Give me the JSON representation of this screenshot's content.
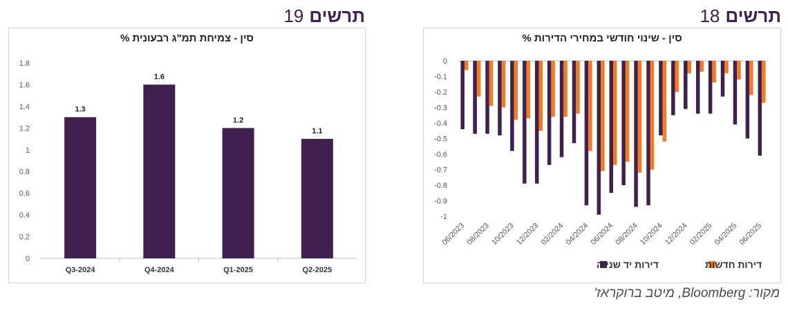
{
  "fig19": {
    "word": "תרשים",
    "number": "19",
    "chart_data": {
      "type": "bar",
      "title": "סין - צמיחת תמ\"ג רבעונית %",
      "categories": [
        "Q3-2024",
        "Q4-2024",
        "Q1-2025",
        "Q2-2025"
      ],
      "values": [
        1.3,
        1.6,
        1.2,
        1.1
      ],
      "data_labels": [
        "1.3",
        "1.6",
        "1.2",
        "1.1"
      ],
      "ylim": [
        0,
        1.8
      ],
      "yticks": [
        "0",
        "0.2",
        "0.4",
        "0.6",
        "0.8",
        "1",
        "1.2",
        "1.4",
        "1.6",
        "1.8"
      ],
      "grid": false,
      "color": "#40204f"
    }
  },
  "fig18": {
    "word": "תרשים",
    "number": "18",
    "chart_data": {
      "type": "bar",
      "title": "סין - שינוי חודשי במחירי הדירות %",
      "categories": [
        "06/2023",
        "07/2023",
        "08/2023",
        "09/2023",
        "10/2023",
        "11/2023",
        "12/2023",
        "01/2024",
        "02/2024",
        "03/2024",
        "04/2024",
        "05/2024",
        "06/2024",
        "07/2024",
        "08/2024",
        "09/2024",
        "10/2024",
        "11/2024",
        "12/2024",
        "01/2025",
        "02/2025",
        "03/2025",
        "04/2025",
        "05/2025",
        "06/2025"
      ],
      "x_tick_labels": [
        "06/2023",
        "08/2023",
        "10/2023",
        "12/2023",
        "02/2024",
        "04/2024",
        "06/2024",
        "08/2024",
        "10/2024",
        "12/2024",
        "02/2025",
        "04/2025",
        "06/2025"
      ],
      "series": [
        {
          "name": "דירות יד שנייה",
          "color": "#40204f",
          "values": [
            -0.44,
            -0.47,
            -0.47,
            -0.48,
            -0.58,
            -0.79,
            -0.79,
            -0.67,
            -0.62,
            -0.53,
            -0.93,
            -0.99,
            -0.85,
            -0.8,
            -0.94,
            -0.93,
            -0.48,
            -0.35,
            -0.31,
            -0.34,
            -0.34,
            -0.23,
            -0.41,
            -0.5,
            -0.61
          ]
        },
        {
          "name": "דירות חדשות",
          "color": "#f47b20",
          "values": [
            -0.06,
            -0.23,
            -0.29,
            -0.3,
            -0.38,
            -0.37,
            -0.45,
            -0.36,
            -0.36,
            -0.34,
            -0.58,
            -0.71,
            -0.67,
            -0.65,
            -0.72,
            -0.7,
            -0.52,
            -0.2,
            -0.08,
            -0.07,
            -0.14,
            -0.08,
            -0.12,
            -0.22,
            -0.27
          ]
        }
      ],
      "ylim": [
        -1,
        0
      ],
      "yticks": [
        "0",
        "-0.1",
        "-0.2",
        "-0.3",
        "-0.4",
        "-0.5",
        "-0.6",
        "-0.7",
        "-0.8",
        "-0.9",
        "-1"
      ],
      "legend_position": "bottom",
      "grid": false
    }
  },
  "source": "מקור: Bloomberg, מיטב ברוקראז'"
}
